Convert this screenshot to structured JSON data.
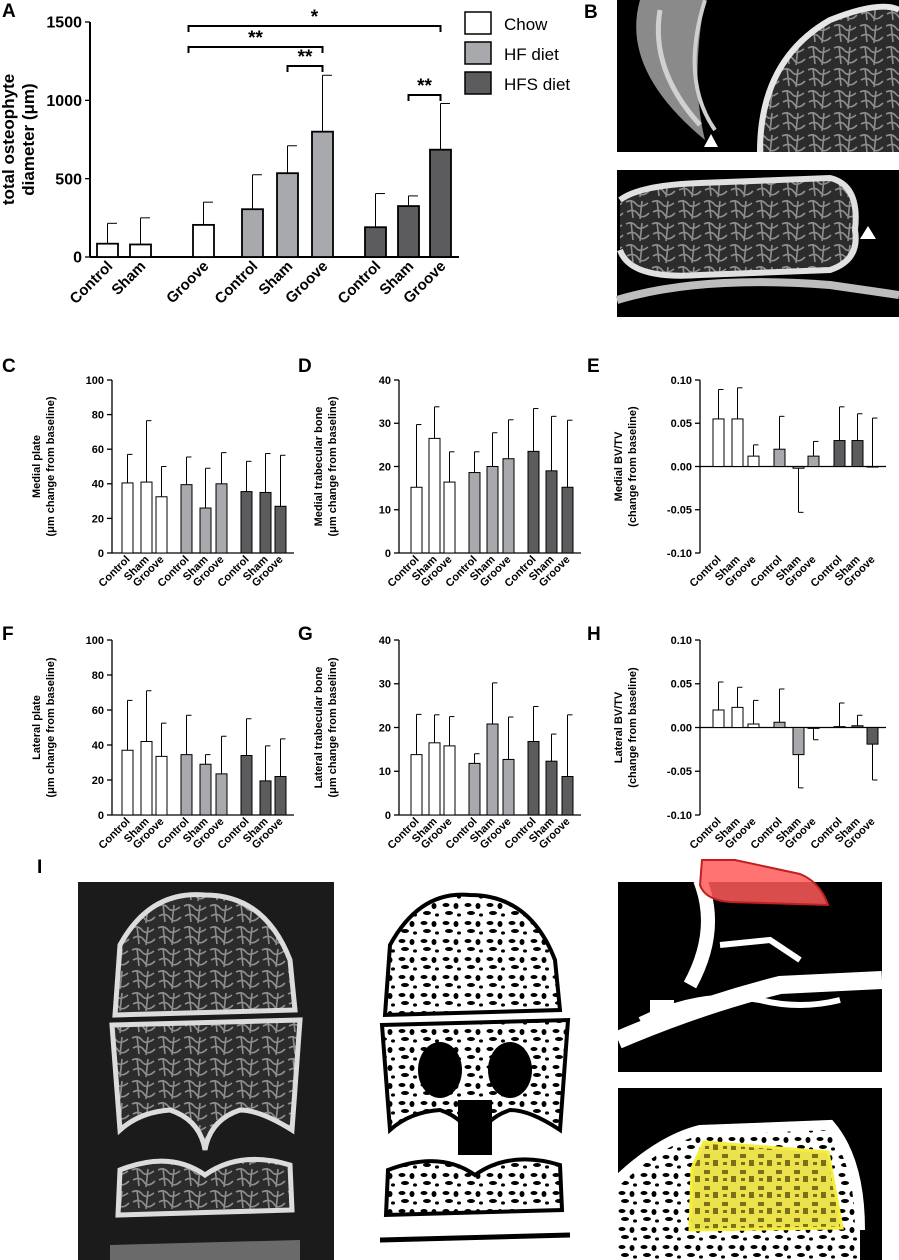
{
  "colors": {
    "chow": "#ffffff",
    "hf": "#a8a9ad",
    "hfs": "#5c5c5e",
    "axis": "#000000",
    "roi_red": "#ff5a5a",
    "roi_yellow": "#f0e640"
  },
  "legend": [
    "Chow",
    "HF diet",
    "HFS diet"
  ],
  "panel_letters": [
    "A",
    "B",
    "C",
    "D",
    "E",
    "F",
    "G",
    "H",
    "I"
  ],
  "chart_data": [
    {
      "id": "A",
      "type": "bar",
      "ylabel_lines": [
        "total osteophyte",
        "diameter (μm)"
      ],
      "ylim": [
        0,
        1500
      ],
      "yticks": [
        "0",
        "500",
        "1000",
        "1500"
      ],
      "categories": [
        "Control",
        "Sham",
        "Groove",
        "Control",
        "Sham",
        "Groove",
        "Control",
        "Sham",
        "Groove"
      ],
      "groups": [
        "Chow",
        "HF diet",
        "HFS diet"
      ],
      "values": [
        85,
        80,
        205,
        305,
        535,
        800,
        190,
        325,
        685
      ],
      "errors": [
        130,
        170,
        145,
        220,
        175,
        360,
        215,
        65,
        295
      ],
      "significance": [
        {
          "from": 2,
          "to": 8,
          "label": "*"
        },
        {
          "from": 2,
          "to": 5,
          "label": "**"
        },
        {
          "from": 4,
          "to": 5,
          "label": "**"
        },
        {
          "from": 7,
          "to": 8,
          "label": "**"
        }
      ]
    },
    {
      "id": "C",
      "type": "bar",
      "ylabel_lines": [
        "Medial plate",
        "(μm change from baseline)"
      ],
      "ylim": [
        0,
        100
      ],
      "yticks": [
        "0",
        "20",
        "40",
        "60",
        "80",
        "100"
      ],
      "categories": [
        "Control",
        "Sham",
        "Groove",
        "Control",
        "Sham",
        "Groove",
        "Control",
        "Sham",
        "Groove"
      ],
      "values": [
        40.5,
        41,
        32.5,
        39.5,
        26,
        40,
        35.5,
        35,
        27
      ],
      "errors": [
        16.5,
        35.5,
        17.5,
        16,
        23,
        18,
        17.5,
        22.5,
        29.5
      ]
    },
    {
      "id": "D",
      "type": "bar",
      "ylabel_lines": [
        "Medial trabecular bone",
        "(μm change from baseline)"
      ],
      "ylim": [
        0,
        40
      ],
      "yticks": [
        "0",
        "10",
        "20",
        "30",
        "40"
      ],
      "categories": [
        "Control",
        "Sham",
        "Groove",
        "Control",
        "Sham",
        "Groove",
        "Control",
        "Sham",
        "Groove"
      ],
      "values": [
        15.2,
        26.5,
        16.4,
        18.6,
        20,
        21.8,
        23.5,
        19,
        15.2
      ],
      "errors": [
        14.5,
        7.3,
        7,
        4.8,
        7.8,
        9,
        9.9,
        12.6,
        15.5
      ]
    },
    {
      "id": "E",
      "type": "bar",
      "ylabel_lines": [
        "Medial BV/TV",
        "(change from baseline)"
      ],
      "ylim": [
        -0.1,
        0.1
      ],
      "yticks": [
        "-0.10",
        "-0.05",
        "0.00",
        "0.05",
        "0.10"
      ],
      "categories": [
        "Control",
        "Sham",
        "Groove",
        "Control",
        "Sham",
        "Groove",
        "Control",
        "Sham",
        "Groove"
      ],
      "values": [
        0.055,
        0.055,
        0.012,
        0.02,
        -0.002,
        0.012,
        0.03,
        0.03,
        0
      ],
      "errors": [
        0.034,
        0.036,
        0.013,
        0.038,
        0.051,
        0.017,
        0.039,
        0.031,
        0.056
      ]
    },
    {
      "id": "F",
      "type": "bar",
      "ylabel_lines": [
        "Lateral plate",
        "(μm change from baseline)"
      ],
      "ylim": [
        0,
        100
      ],
      "yticks": [
        "0",
        "20",
        "40",
        "60",
        "80",
        "100"
      ],
      "categories": [
        "Control",
        "Sham",
        "Groove",
        "Control",
        "Sham",
        "Groove",
        "Control",
        "Sham",
        "Groove"
      ],
      "values": [
        37,
        42,
        33.5,
        34.5,
        29,
        23.5,
        34,
        19.5,
        22
      ],
      "errors": [
        28.5,
        29,
        19,
        22.5,
        5.5,
        21.5,
        21,
        20,
        21.5
      ]
    },
    {
      "id": "G",
      "type": "bar",
      "ylabel_lines": [
        "Lateral trabecular bone",
        "(μm change from baseline)"
      ],
      "ylim": [
        0,
        40
      ],
      "yticks": [
        "0",
        "10",
        "20",
        "30",
        "40"
      ],
      "categories": [
        "Control",
        "Sham",
        "Groove",
        "Control",
        "Sham",
        "Groove",
        "Control",
        "Sham",
        "Groove"
      ],
      "values": [
        13.8,
        16.5,
        15.8,
        11.8,
        20.8,
        12.7,
        16.8,
        12.3,
        8.8
      ],
      "errors": [
        9.2,
        6.4,
        6.7,
        2.2,
        9.4,
        9.7,
        8,
        6.2,
        14.1
      ]
    },
    {
      "id": "H",
      "type": "bar",
      "ylabel_lines": [
        "Lateral BV/TV",
        "(change from baseline)"
      ],
      "ylim": [
        -0.1,
        0.1
      ],
      "yticks": [
        "-0.10",
        "-0.05",
        "0.00",
        "0.05",
        "0.10"
      ],
      "categories": [
        "Control",
        "Sham",
        "Groove",
        "Control",
        "Sham",
        "Groove",
        "Control",
        "Sham",
        "Groove"
      ],
      "values": [
        0.02,
        0.023,
        0.004,
        0.006,
        -0.031,
        -0.001,
        0.001,
        0.002,
        -0.019
      ],
      "errors": [
        0.032,
        0.023,
        0.027,
        0.038,
        0.038,
        0.013,
        0.027,
        0.012,
        0.041
      ]
    }
  ]
}
